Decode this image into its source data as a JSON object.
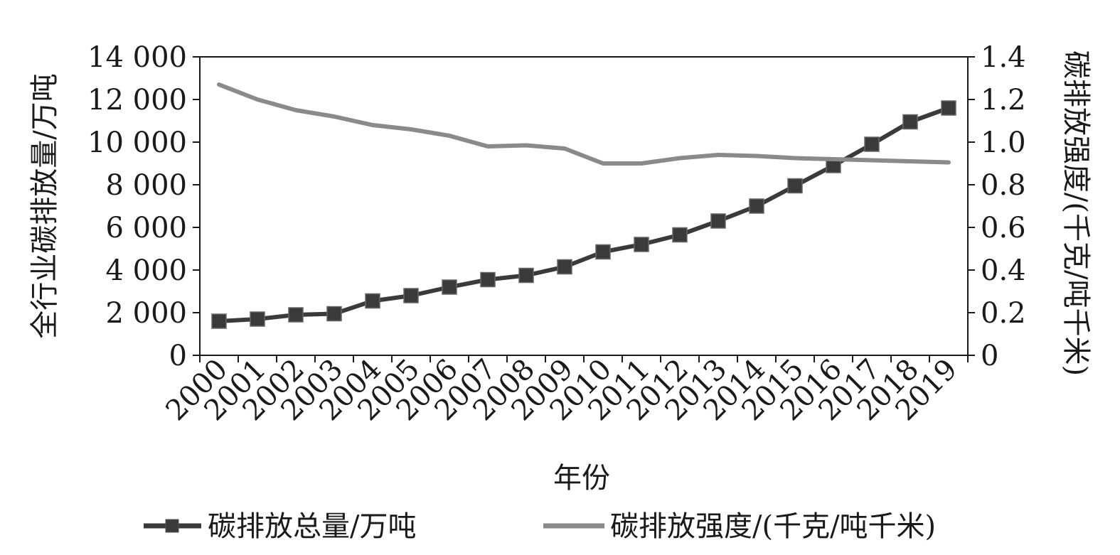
{
  "chart_data": {
    "type": "line",
    "title": "",
    "xlabel": "年份",
    "ylabel_left": "全行业碳排放量/万吨",
    "ylabel_right": "碳排放强度/(千克/吨千米)",
    "categories": [
      "2000",
      "2001",
      "2002",
      "2003",
      "2004",
      "2005",
      "2006",
      "2007",
      "2008",
      "2009",
      "2010",
      "2011",
      "2012",
      "2013",
      "2014",
      "2015",
      "2016",
      "2017",
      "2018",
      "2019"
    ],
    "y_left": {
      "min": 0,
      "max": 14000,
      "ticks": [
        0,
        2000,
        4000,
        6000,
        8000,
        10000,
        12000,
        14000
      ],
      "tick_labels": [
        "0",
        "2 000",
        "4 000",
        "6 000",
        "8 000",
        "10 000",
        "12 000",
        "14 000"
      ]
    },
    "y_right": {
      "min": 0,
      "max": 1.4,
      "ticks": [
        0,
        0.2,
        0.4,
        0.6,
        0.8,
        1.0,
        1.2,
        1.4
      ],
      "tick_labels": [
        "0",
        "0.2",
        "0.4",
        "0.6",
        "0.8",
        "1.0",
        "1.2",
        "1.4"
      ]
    },
    "series": [
      {
        "name": "碳排放总量/万吨",
        "axis": "left",
        "color": "#3a3a3a",
        "marker": "square",
        "values": [
          1600,
          1700,
          1900,
          1950,
          2550,
          2800,
          3200,
          3550,
          3750,
          4150,
          4850,
          5200,
          5650,
          6300,
          7000,
          7950,
          8900,
          9900,
          10950,
          11600
        ]
      },
      {
        "name": "碳排放强度/(千克/吨千米)",
        "axis": "right",
        "color": "#8a8a8a",
        "marker": "none",
        "values": [
          1.27,
          1.2,
          1.15,
          1.12,
          1.08,
          1.06,
          1.03,
          0.98,
          0.985,
          0.97,
          0.9,
          0.9,
          0.925,
          0.94,
          0.935,
          0.925,
          0.92,
          0.915,
          0.91,
          0.905
        ]
      }
    ],
    "grid": false,
    "legend_position": "bottom"
  }
}
